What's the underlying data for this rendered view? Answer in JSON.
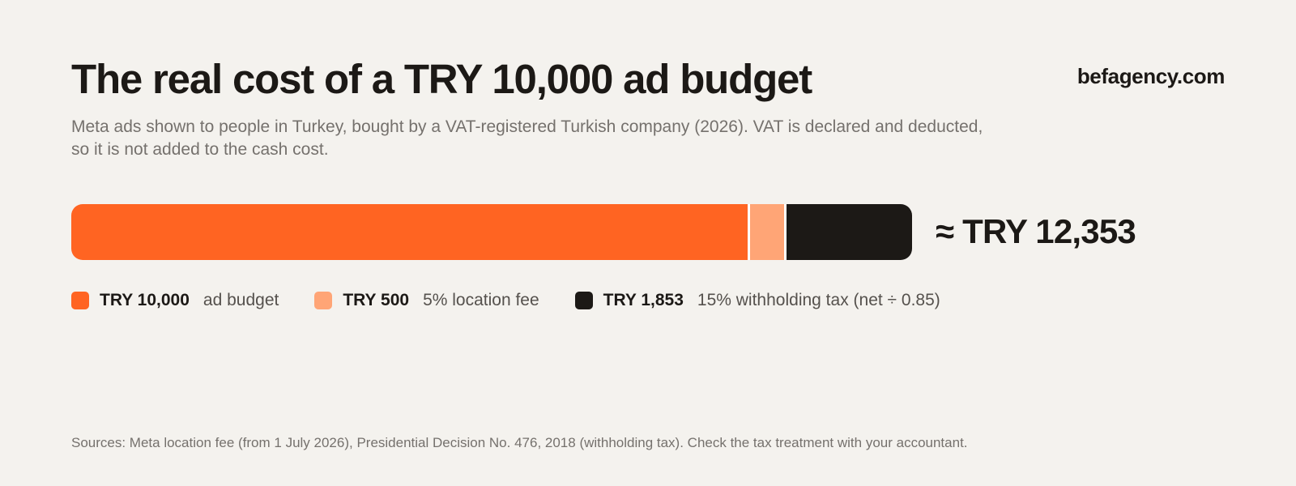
{
  "header": {
    "title": "The real cost of a TRY 10,000 ad budget",
    "brand": "befagency.com",
    "subtitle_line1": "Meta ads shown to people in Turkey, bought by a VAT-registered Turkish company (2026). VAT is declared and deducted,",
    "subtitle_line2": "so it is not added to the cash cost."
  },
  "chart_data": {
    "type": "bar",
    "orientation": "horizontal",
    "stacked": true,
    "categories": [
      "Real cost"
    ],
    "series": [
      {
        "value": 10000,
        "value_label": "TRY 10,000",
        "label": "ad budget",
        "color": "#ff6422"
      },
      {
        "value": 500,
        "value_label": "TRY 500",
        "label": "5% location fee",
        "color": "#ffa576"
      },
      {
        "value": 1853,
        "value_label": "TRY 1,853",
        "label": "15% withholding tax (net ÷ 0.85)",
        "color": "#1c1916"
      }
    ],
    "total_value": 12353,
    "total_label": "≈ TRY 12,353",
    "legend_position": "bottom",
    "grid": false
  },
  "footer": {
    "sources": "Sources: Meta location fee (from 1 July 2026), Presidential Decision No. 476, 2018 (withholding tax). Check the tax treatment with your accountant."
  }
}
